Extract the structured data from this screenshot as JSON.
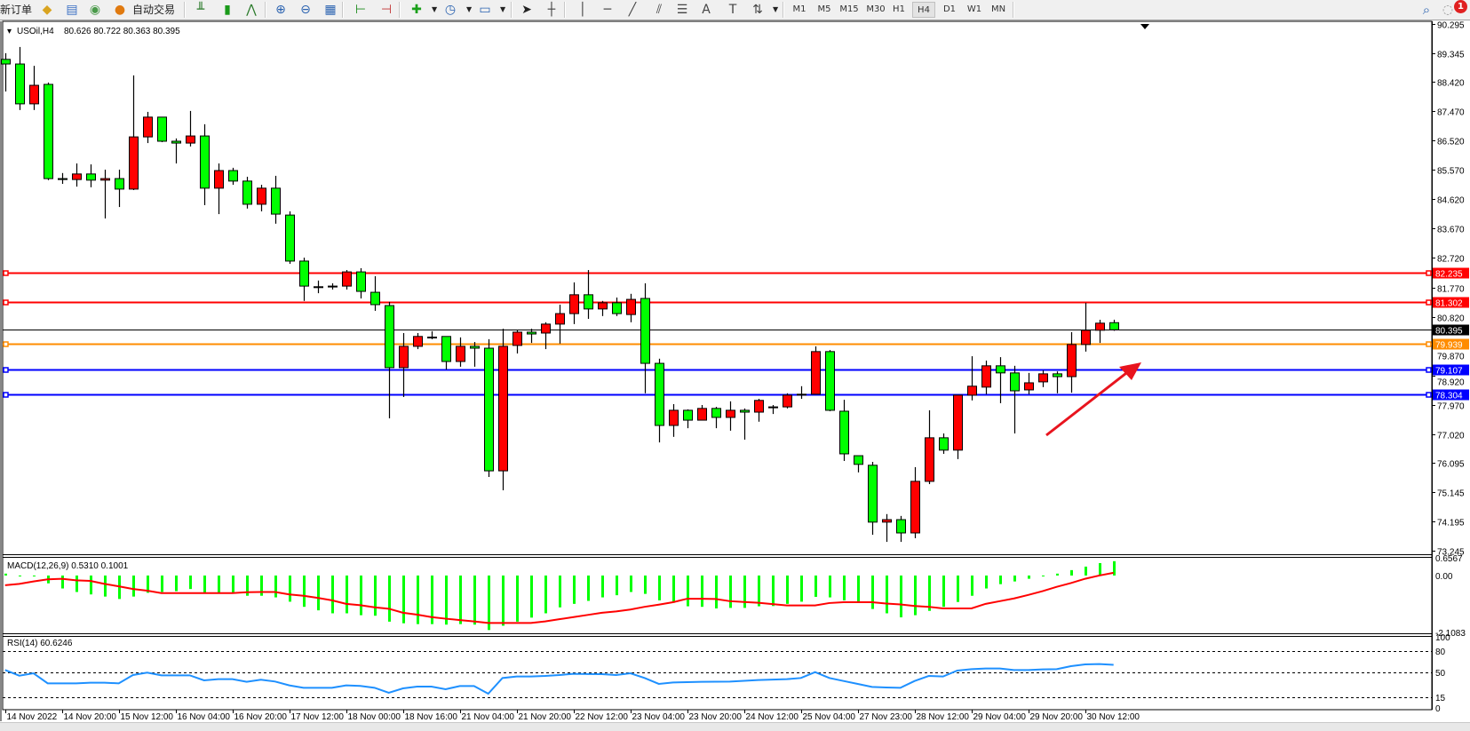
{
  "toolbar": {
    "new_order_label": "新订单",
    "auto_trading_label": "自动交易",
    "icons": [
      {
        "name": "strategy-tester-icon",
        "glyph": "◆",
        "color": "#d9a420"
      },
      {
        "name": "terminal-icon",
        "glyph": "▤",
        "color": "#3a6fc4"
      },
      {
        "name": "signals-icon",
        "glyph": "◉",
        "color": "#4a9a4a"
      },
      {
        "name": "auto-trading-icon",
        "glyph": "●",
        "color": "#e07a10"
      },
      {
        "name": "bar-chart-icon",
        "glyph": "╨",
        "color": "#2a7a2a"
      },
      {
        "name": "candlestick-chart-icon",
        "glyph": "▮",
        "color": "#1a9a1a"
      },
      {
        "name": "line-chart-icon",
        "glyph": "⋀",
        "color": "#2a7a2a"
      },
      {
        "name": "zoom-in-icon",
        "glyph": "⊕",
        "color": "#2a62b0"
      },
      {
        "name": "zoom-out-icon",
        "glyph": "⊖",
        "color": "#2a62b0"
      },
      {
        "name": "tile-windows-icon",
        "glyph": "▦",
        "color": "#2a62b0"
      },
      {
        "name": "chart-shift-icon",
        "glyph": "⊢",
        "color": "#1a8a1a"
      },
      {
        "name": "autoscroll-icon",
        "glyph": "⊣",
        "color": "#c03030"
      },
      {
        "name": "indicators-icon",
        "glyph": "✚",
        "color": "#1aa01a"
      },
      {
        "name": "periods-icon",
        "glyph": "◷",
        "color": "#2a62b0"
      },
      {
        "name": "templates-icon",
        "glyph": "▭",
        "color": "#2a62b0"
      },
      {
        "name": "cursor-icon",
        "glyph": "➤",
        "color": "#222222"
      },
      {
        "name": "crosshair-icon",
        "glyph": "┼",
        "color": "#444444"
      },
      {
        "name": "vertical-line-icon",
        "glyph": "│",
        "color": "#444444"
      },
      {
        "name": "horizontal-line-icon",
        "glyph": "─",
        "color": "#444444"
      },
      {
        "name": "trendline-icon",
        "glyph": "╱",
        "color": "#444444"
      },
      {
        "name": "equidistant-channel-icon",
        "glyph": "⫽",
        "color": "#444444"
      },
      {
        "name": "fibonacci-icon",
        "glyph": "☰",
        "color": "#444444"
      },
      {
        "name": "text-icon",
        "glyph": "A",
        "color": "#444444"
      },
      {
        "name": "text-label-icon",
        "glyph": "T",
        "color": "#444444"
      },
      {
        "name": "arrows-icon",
        "glyph": "⇅",
        "color": "#444444"
      }
    ],
    "timeframes": [
      "M1",
      "M5",
      "M15",
      "M30",
      "H1",
      "H4",
      "D1",
      "W1",
      "MN"
    ],
    "active_timeframe": "H4",
    "search_icon": "search-icon",
    "notification_count": "1"
  },
  "chart": {
    "symbol": "USOil,H4",
    "ohlc_readout": "80.626 80.722 80.363 80.395",
    "macd_label": "MACD(12,26,9) 0.5310 0.1001",
    "rsi_label": "RSI(14) 60.6246"
  },
  "chart_data": [
    {
      "type": "candlestick",
      "symbol": "USOil",
      "timeframe": "H4",
      "ylim": [
        73.245,
        90.295
      ],
      "y_ticks": [
        "90.295",
        "89.345",
        "88.420",
        "87.470",
        "86.520",
        "85.570",
        "84.620",
        "83.670",
        "82.720",
        "81.770",
        "80.820",
        "79.870",
        "78.920",
        "77.970",
        "77.020",
        "76.095",
        "75.145",
        "74.195",
        "73.245"
      ],
      "x_ticks": [
        {
          "label": "14 Nov 2022",
          "bar": 0
        },
        {
          "label": "14 Nov 20:00",
          "bar": 4
        },
        {
          "label": "15 Nov 12:00",
          "bar": 8
        },
        {
          "label": "16 Nov 04:00",
          "bar": 12
        },
        {
          "label": "16 Nov 20:00",
          "bar": 16
        },
        {
          "label": "17 Nov 12:00",
          "bar": 20
        },
        {
          "label": "18 Nov 00:00",
          "bar": 24
        },
        {
          "label": "18 Nov 16:00",
          "bar": 28
        },
        {
          "label": "21 Nov 04:00",
          "bar": 32
        },
        {
          "label": "21 Nov 20:00",
          "bar": 36
        },
        {
          "label": "22 Nov 12:00",
          "bar": 40
        },
        {
          "label": "23 Nov 04:00",
          "bar": 44
        },
        {
          "label": "23 Nov 20:00",
          "bar": 48
        },
        {
          "label": "24 Nov 12:00",
          "bar": 52
        },
        {
          "label": "25 Nov 04:00",
          "bar": 56
        },
        {
          "label": "27 Nov 23:00",
          "bar": 60
        },
        {
          "label": "28 Nov 12:00",
          "bar": 64
        },
        {
          "label": "29 Nov 04:00",
          "bar": 68
        },
        {
          "label": "29 Nov 20:00",
          "bar": 72
        },
        {
          "label": "30 Nov 12:00",
          "bar": 76
        }
      ],
      "bull_color": "#ff0000",
      "bear_color": "#00ff00",
      "ohlc": [
        [
          89.15,
          89.35,
          88.11,
          89.0
        ],
        [
          89.0,
          89.55,
          87.51,
          87.71
        ],
        [
          87.71,
          88.94,
          87.51,
          88.31
        ],
        [
          88.34,
          88.4,
          85.24,
          85.29
        ],
        [
          85.29,
          85.47,
          85.12,
          85.26
        ],
        [
          85.26,
          85.78,
          85.03,
          85.44
        ],
        [
          85.44,
          85.75,
          85.01,
          85.24
        ],
        [
          85.24,
          85.58,
          84.0,
          85.29
        ],
        [
          85.29,
          85.58,
          84.37,
          84.95
        ],
        [
          84.95,
          88.63,
          84.92,
          86.64
        ],
        [
          86.64,
          87.45,
          86.44,
          87.28
        ],
        [
          87.28,
          87.28,
          86.47,
          86.5
        ],
        [
          86.5,
          86.59,
          85.78,
          86.44
        ],
        [
          86.44,
          87.48,
          86.33,
          86.67
        ],
        [
          86.67,
          87.05,
          84.43,
          84.98
        ],
        [
          84.98,
          85.78,
          84.14,
          85.55
        ],
        [
          85.55,
          85.64,
          85.09,
          85.21
        ],
        [
          85.21,
          85.35,
          84.32,
          84.46
        ],
        [
          84.46,
          85.09,
          84.23,
          84.98
        ],
        [
          84.98,
          85.38,
          83.83,
          84.14
        ],
        [
          84.11,
          84.23,
          82.53,
          82.62
        ],
        [
          82.62,
          82.73,
          81.33,
          81.81
        ],
        [
          81.79,
          81.99,
          81.58,
          81.78
        ],
        [
          81.81,
          81.9,
          81.7,
          81.81
        ],
        [
          81.81,
          82.33,
          81.7,
          82.27
        ],
        [
          82.27,
          82.39,
          81.41,
          81.64
        ],
        [
          81.61,
          82.13,
          81.01,
          81.21
        ],
        [
          81.18,
          81.3,
          77.53,
          79.17
        ],
        [
          79.17,
          80.29,
          78.22,
          79.86
        ],
        [
          79.86,
          80.29,
          79.77,
          80.18
        ],
        [
          80.15,
          80.35,
          80.09,
          80.16
        ],
        [
          80.18,
          80.18,
          79.11,
          79.37
        ],
        [
          79.37,
          80.15,
          79.2,
          79.86
        ],
        [
          79.86,
          80.0,
          79.2,
          79.8
        ],
        [
          79.8,
          80.09,
          75.63,
          75.83
        ],
        [
          75.83,
          80.43,
          75.2,
          79.86
        ],
        [
          79.89,
          80.38,
          79.63,
          80.32
        ],
        [
          80.32,
          80.43,
          79.97,
          80.26
        ],
        [
          80.29,
          80.64,
          79.77,
          80.58
        ],
        [
          80.58,
          81.21,
          79.95,
          80.92
        ],
        [
          80.92,
          81.93,
          80.58,
          81.53
        ],
        [
          81.53,
          82.33,
          80.75,
          81.07
        ],
        [
          81.07,
          81.33,
          80.84,
          81.27
        ],
        [
          81.27,
          81.44,
          80.84,
          80.92
        ],
        [
          80.89,
          81.56,
          80.64,
          81.38
        ],
        [
          81.41,
          81.9,
          78.34,
          79.31
        ],
        [
          79.31,
          79.46,
          76.75,
          77.3
        ],
        [
          77.3,
          77.99,
          76.93,
          77.79
        ],
        [
          77.79,
          77.82,
          77.21,
          77.47
        ],
        [
          77.47,
          77.96,
          77.47,
          77.85
        ],
        [
          77.85,
          77.9,
          77.21,
          77.56
        ],
        [
          77.56,
          78.08,
          77.13,
          77.79
        ],
        [
          77.79,
          77.85,
          76.84,
          77.73
        ],
        [
          77.73,
          78.16,
          77.42,
          78.11
        ],
        [
          77.89,
          77.96,
          77.67,
          77.9
        ],
        [
          77.9,
          78.34,
          77.85,
          78.28
        ],
        [
          78.31,
          78.57,
          78.16,
          78.3
        ],
        [
          78.31,
          79.86,
          78.31,
          79.69
        ],
        [
          79.69,
          79.74,
          77.76,
          77.79
        ],
        [
          77.76,
          78.13,
          76.15,
          76.38
        ],
        [
          76.32,
          76.32,
          75.78,
          76.04
        ],
        [
          76.01,
          76.12,
          73.76,
          74.17
        ],
        [
          74.17,
          74.43,
          73.53,
          74.25
        ],
        [
          74.25,
          74.37,
          73.53,
          73.82
        ],
        [
          73.82,
          75.95,
          73.65,
          75.49
        ],
        [
          75.49,
          77.79,
          75.4,
          76.9
        ],
        [
          76.9,
          77.04,
          76.38,
          76.5
        ],
        [
          76.5,
          78.28,
          76.21,
          78.28
        ],
        [
          78.28,
          79.54,
          78.11,
          78.57
        ],
        [
          78.54,
          79.4,
          78.31,
          79.23
        ],
        [
          79.23,
          79.51,
          78.02,
          79.0
        ],
        [
          79.0,
          79.23,
          77.04,
          78.42
        ],
        [
          78.45,
          79.0,
          78.31,
          78.68
        ],
        [
          78.71,
          79.08,
          78.54,
          78.97
        ],
        [
          78.97,
          79.05,
          78.34,
          78.88
        ],
        [
          78.88,
          80.32,
          78.36,
          79.92
        ],
        [
          79.92,
          81.27,
          79.69,
          80.38
        ],
        [
          80.38,
          80.72,
          79.97,
          80.61
        ],
        [
          80.626,
          80.722,
          80.363,
          80.395
        ]
      ],
      "price_levels": [
        {
          "value": "82.235",
          "color": "#ff0000"
        },
        {
          "value": "81.302",
          "color": "#ff0000"
        },
        {
          "value": "80.395",
          "color": "#000000",
          "kind": "bid"
        },
        {
          "value": "79.939",
          "color": "#ff8c00"
        },
        {
          "value": "79.107",
          "color": "#0000ff"
        },
        {
          "value": "78.304",
          "color": "#0000ff"
        }
      ],
      "annotation_arrow_color": "#e8141e"
    },
    {
      "type": "bar",
      "indicator": "MACD(12,26,9)",
      "ylim": [
        -2.1083,
        0.6567
      ],
      "y_ticks": [
        "0.6567",
        "0.00",
        "-2.1083"
      ],
      "main_color": "#00ff00",
      "signal_color": "#ff0000",
      "main": [
        0.07,
        0.0,
        -0.02,
        -0.29,
        -0.48,
        -0.61,
        -0.7,
        -0.78,
        -0.87,
        -0.78,
        -0.64,
        -0.61,
        -0.58,
        -0.5,
        -0.64,
        -0.64,
        -0.64,
        -0.75,
        -0.75,
        -0.81,
        -0.97,
        -1.16,
        -1.29,
        -1.4,
        -1.4,
        -1.47,
        -1.49,
        -1.71,
        -1.77,
        -1.8,
        -1.8,
        -1.82,
        -1.8,
        -1.82,
        -2.02,
        -1.86,
        -1.71,
        -1.56,
        -1.4,
        -1.18,
        -1.05,
        -0.94,
        -0.81,
        -0.73,
        -0.61,
        -0.68,
        -0.92,
        -1.01,
        -1.14,
        -1.16,
        -1.22,
        -1.2,
        -1.2,
        -1.14,
        -1.13,
        -1.05,
        -0.97,
        -0.79,
        -0.81,
        -0.92,
        -0.97,
        -1.24,
        -1.4,
        -1.55,
        -1.47,
        -1.31,
        -1.16,
        -0.98,
        -0.75,
        -0.48,
        -0.32,
        -0.22,
        -0.12,
        -0.02,
        0.07,
        0.2,
        0.33,
        0.46,
        0.531
      ],
      "signal": [
        -0.36,
        -0.31,
        -0.22,
        -0.14,
        -0.12,
        -0.18,
        -0.2,
        -0.31,
        -0.4,
        -0.5,
        -0.56,
        -0.65,
        -0.65,
        -0.65,
        -0.65,
        -0.65,
        -0.65,
        -0.62,
        -0.61,
        -0.61,
        -0.7,
        -0.75,
        -0.83,
        -0.92,
        -1.05,
        -1.1,
        -1.18,
        -1.23,
        -1.38,
        -1.45,
        -1.54,
        -1.6,
        -1.65,
        -1.7,
        -1.76,
        -1.76,
        -1.76,
        -1.76,
        -1.7,
        -1.62,
        -1.54,
        -1.46,
        -1.38,
        -1.33,
        -1.26,
        -1.16,
        -1.08,
        -0.99,
        -0.86,
        -0.86,
        -0.87,
        -0.95,
        -0.98,
        -1.01,
        -1.06,
        -1.11,
        -1.11,
        -1.11,
        -1.02,
        -0.99,
        -0.99,
        -0.99,
        -1.04,
        -1.07,
        -1.13,
        -1.16,
        -1.22,
        -1.22,
        -1.22,
        -1.05,
        -0.95,
        -0.85,
        -0.72,
        -0.58,
        -0.42,
        -0.28,
        -0.12,
        0.0,
        0.1001
      ]
    },
    {
      "type": "line",
      "indicator": "RSI(14)",
      "ylim": [
        0,
        100
      ],
      "y_ticks": [
        "100",
        "80",
        "50",
        "15",
        "0"
      ],
      "levels": [
        80,
        50,
        15
      ],
      "color": "#1e90ff",
      "values": [
        53.3,
        45.4,
        48.7,
        34.6,
        34.6,
        34.6,
        35.4,
        35.4,
        34.6,
        46.3,
        49.6,
        45.8,
        45.8,
        45.8,
        38.8,
        40.4,
        40.4,
        36.7,
        39.6,
        37.1,
        31.7,
        28.3,
        28.3,
        28.3,
        31.7,
        31.0,
        28.3,
        21.3,
        27.5,
        30.0,
        30.0,
        26.3,
        30.8,
        30.8,
        20.0,
        42.1,
        44.2,
        44.2,
        45.0,
        46.3,
        47.9,
        47.7,
        47.5,
        46.3,
        48.7,
        42.1,
        33.8,
        35.8,
        36.2,
        36.7,
        36.9,
        37.1,
        38.2,
        39.2,
        39.8,
        40.4,
        42.1,
        50.4,
        42.1,
        37.9,
        33.8,
        29.6,
        28.8,
        28.3,
        37.9,
        45.0,
        44.2,
        52.5,
        54.6,
        55.4,
        55.4,
        53.3,
        53.3,
        54.2,
        54.6,
        58.8,
        61.3,
        61.7,
        60.6246
      ]
    }
  ]
}
